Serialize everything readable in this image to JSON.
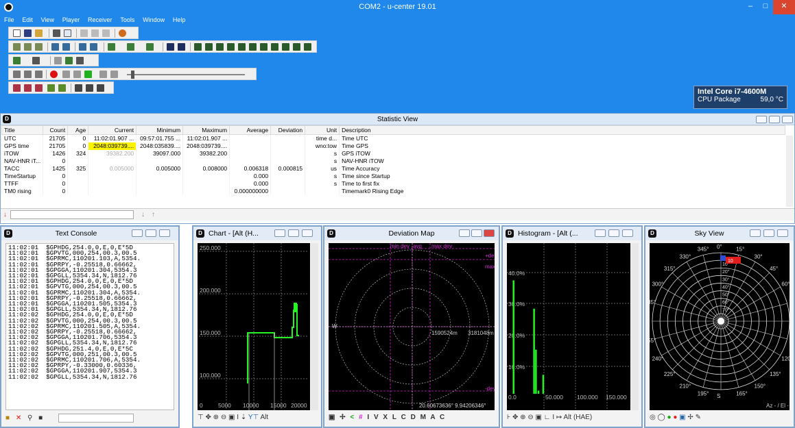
{
  "window": {
    "title": "COM2 - u-center 19.01"
  },
  "menu": [
    "File",
    "Edit",
    "View",
    "Player",
    "Receiver",
    "Tools",
    "Window",
    "Help"
  ],
  "cpu_widget": {
    "name": "Intel Core i7-4600M",
    "label": "CPU Package",
    "value": "59,0 °C"
  },
  "stat": {
    "title": "Statistic View",
    "columns": [
      "Title",
      "Count",
      "Age",
      "Current",
      "Minimum",
      "Maximum",
      "Average",
      "Deviation",
      "Unit",
      "Description"
    ],
    "rows": [
      [
        "UTC",
        "21705",
        "0",
        "11:02:01.907 ...",
        "09:57:01.755 ...",
        "11:02:01.907 ...",
        "",
        "",
        "time d...",
        "Time UTC"
      ],
      [
        "GPS time",
        "21705",
        "0",
        "2048:039739....",
        "2048:035839....",
        "2048:039739....",
        "",
        "",
        "wno:tow",
        "Time GPS"
      ],
      [
        "iTOW",
        "1426",
        "324",
        "39382.200",
        "39097.000",
        "39382.200",
        "",
        "",
        "s",
        "GPS iTOW"
      ],
      [
        "NAV-HNR iT...",
        "0",
        "",
        "",
        "",
        "",
        "",
        "",
        "s",
        "NAV-HNR iTOW"
      ],
      [
        "TACC",
        "1425",
        "325",
        "0.005000",
        "0.005000",
        "0.008000",
        "0.006318",
        "0.000815",
        "us",
        "Time Accuracy"
      ],
      [
        "TimeStartup",
        "0",
        "",
        "",
        "",
        "",
        "0.000",
        "",
        "s",
        "Time since Startup"
      ],
      [
        "TTFF",
        "0",
        "",
        "",
        "",
        "",
        "0.000",
        "",
        "s",
        "Time to first fix"
      ],
      [
        "TM0 rising",
        "0",
        "",
        "",
        "",
        "",
        "0.000000000",
        "",
        "",
        "Timemark0 Rising Edge"
      ]
    ]
  },
  "console": {
    "title": "Text Console",
    "lines": [
      "11:02:01  $GPHDG,254.0,0,E,0,E*5D",
      "11:02:01  $GPVTG,000,254,00.3,00.5",
      "11:02:01  $GPRMC,110201.103,A,5354.",
      "11:02:01  $GPRPY,-0.25518,0.66662,",
      "11:02:01  $GPGGA,110201.304,5354.3",
      "11:02:01  $GPGLL,5354.34,N,1812.76",
      "11:02:01  $GPHDG,254.0,0,E,0,E*5D",
      "11:02:01  $GPVTG,000,254,00.3,00.5",
      "11:02:01  $GPRMC,110201.304,A,5354.",
      "11:02:01  $GPRPY,-0.25518,0.66662,",
      "11:02:01  $GPGGA,110201.505,5354.3",
      "11:02:01  $GPGLL,5354.34,N,1812.76",
      "11:02:02  $GPHDG,254.0,0,E,0,E*5D",
      "11:02:02  $GPVTG,000,254,00.3,00.5",
      "11:02:02  $GPRMC,110201.505,A,5354.",
      "11:02:02  $GPRPY,-0.25518,0.66662,",
      "11:02:02  $GPGGA,110201.706,5354.3",
      "11:02:02  $GPGLL,5354.34,N,1812.76",
      "11:02:02  $GPHDG,251.4,0,E,0,E*5C",
      "11:02:02  $GPVTG,000,251,00.3,00.5",
      "11:02:02  $GPRMC,110201.706,A,5354.",
      "11:02:02  $GPRPY,-0.33000,0.60336,",
      "11:02:02  $GPGGA,110201.907,5354.3",
      "11:02:02  $GPGLL,5354.34,N,1812.76"
    ]
  },
  "chart": {
    "title": "Chart - [Alt (H...",
    "y_labels": [
      "250.000",
      "200.000",
      "150.000",
      "100.000"
    ],
    "x_labels": [
      "0",
      "5000",
      "10000",
      "15000",
      "20000"
    ],
    "alt_label": "Alt"
  },
  "devmap": {
    "title": "Deviation Map",
    "legend": [
      "min dev",
      "avg",
      "max dev"
    ],
    "right_labels": [
      "+dev",
      "-dev",
      "max"
    ],
    "center_values": [
      "1590524m",
      "3181048m"
    ],
    "readout": "20.60673636° 9.94206346°",
    "toolbar": [
      "I",
      "V",
      "X",
      "L",
      "C",
      "D",
      "M",
      "A",
      "C"
    ]
  },
  "hist": {
    "title": "Histogram - [Alt (...",
    "y_labels": [
      "40.0%",
      "30.0%",
      "20.0%",
      "10.0%"
    ],
    "x_labels": [
      "0.0",
      "50.000",
      "100.000",
      "150.000"
    ],
    "alt_label": "Alt (HAE)",
    "bars": [
      {
        "x": 0.5,
        "pct": 36
      },
      {
        "x": 33,
        "pct": 27
      },
      {
        "x": 36,
        "pct": 14
      },
      {
        "x": 40,
        "pct": 1
      },
      {
        "x": 47.5,
        "pct": 6
      }
    ]
  },
  "sky": {
    "title": "Sky View",
    "azimuths": [
      "0°",
      "15°",
      "30°",
      "45°",
      "60°",
      "75°",
      "E",
      "105°",
      "120°",
      "135°",
      "150°",
      "165°",
      "S",
      "195°",
      "210°",
      "225°",
      "240°",
      "255°",
      "W",
      "285°",
      "300°",
      "315°",
      "330°",
      "345°"
    ],
    "elevations": [
      "10°",
      "20°",
      "30°",
      "40°",
      "50°",
      "60°",
      "70°"
    ],
    "footer": "Az - / El -",
    "sat_label": "10"
  }
}
